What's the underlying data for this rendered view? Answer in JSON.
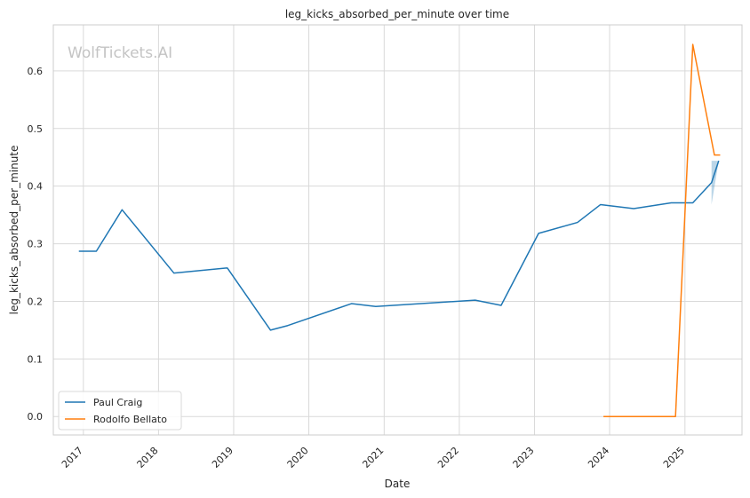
{
  "chart_data": {
    "type": "line",
    "title": "leg_kicks_absorbed_per_minute over time",
    "xlabel": "Date",
    "ylabel": "leg_kicks_absorbed_per_minute",
    "watermark": "WolfTickets.AI",
    "xlim": [
      "2016-08-08",
      "2025-10-05"
    ],
    "ylim": [
      -0.032,
      0.68
    ],
    "x_ticks": [
      "2017",
      "2018",
      "2019",
      "2020",
      "2021",
      "2022",
      "2023",
      "2024",
      "2025"
    ],
    "y_ticks": [
      "0.0",
      "0.1",
      "0.2",
      "0.3",
      "0.4",
      "0.5",
      "0.6"
    ],
    "grid": true,
    "legend_position": "lower-left",
    "series": [
      {
        "name": "Paul Craig",
        "color": "#1f77b4",
        "points": [
          [
            "2016-12-10",
            0.287
          ],
          [
            "2017-03-05",
            0.287
          ],
          [
            "2017-07-08",
            0.359
          ],
          [
            "2018-03-17",
            0.249
          ],
          [
            "2018-12-01",
            0.258
          ],
          [
            "2019-06-29",
            0.15
          ],
          [
            "2019-09-21",
            0.158
          ],
          [
            "2020-07-26",
            0.196
          ],
          [
            "2020-11-21",
            0.191
          ],
          [
            "2022-03-19",
            0.202
          ],
          [
            "2022-07-23",
            0.193
          ],
          [
            "2023-01-21",
            0.318
          ],
          [
            "2023-07-29",
            0.337
          ],
          [
            "2023-11-18",
            0.368
          ],
          [
            "2024-04-27",
            0.361
          ],
          [
            "2024-10-26",
            0.371
          ],
          [
            "2025-02-08",
            0.371
          ],
          [
            "2025-05-10",
            0.406
          ],
          [
            "2025-06-14",
            0.444
          ]
        ],
        "band": [
          [
            "2025-05-10",
            0.368,
            0.444
          ],
          [
            "2025-06-14",
            0.444,
            0.444
          ]
        ]
      },
      {
        "name": "Rodolfo Bellato",
        "color": "#ff7f0e",
        "points": [
          [
            "2023-12-02",
            0.0
          ],
          [
            "2024-11-16",
            0.0
          ],
          [
            "2025-02-08",
            0.646
          ],
          [
            "2025-05-24",
            0.454
          ],
          [
            "2025-06-21",
            0.454
          ]
        ]
      }
    ]
  }
}
